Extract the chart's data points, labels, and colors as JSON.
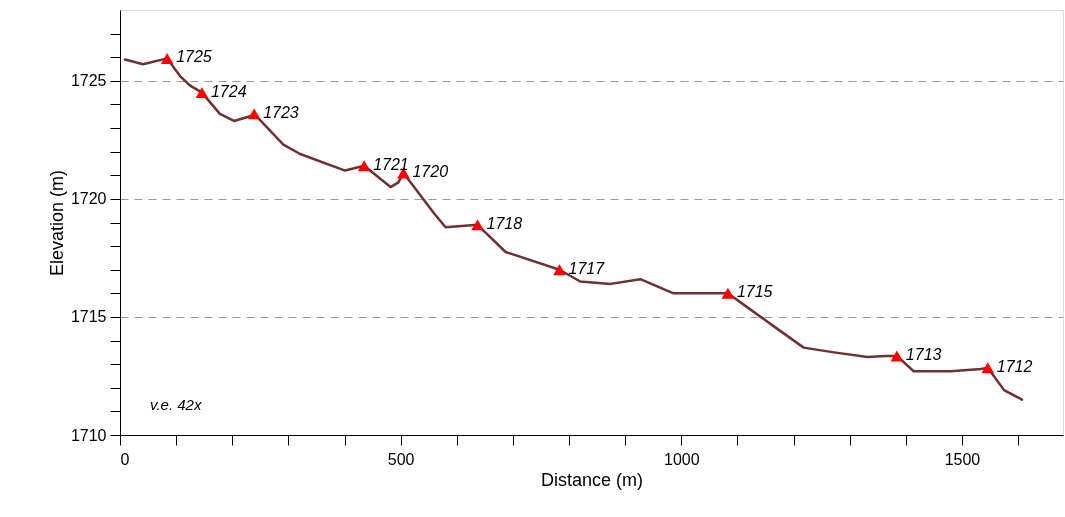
{
  "chart_data": {
    "type": "line",
    "xlabel": "Distance (m)",
    "ylabel": "Elevation (m)",
    "xlim": [
      0,
      1680
    ],
    "ylim": [
      1710,
      1728
    ],
    "xticks": [
      0,
      {
        "value": 100,
        "label": null
      },
      {
        "value": 200,
        "label": null
      },
      {
        "value": 300,
        "label": null
      },
      {
        "value": 400,
        "label": null
      },
      500,
      {
        "value": 600,
        "label": null
      },
      {
        "value": 700,
        "label": null
      },
      {
        "value": 800,
        "label": null
      },
      {
        "value": 900,
        "label": null
      },
      1000,
      {
        "value": 1100,
        "label": null
      },
      {
        "value": 1200,
        "label": null
      },
      {
        "value": 1300,
        "label": null
      },
      {
        "value": 1400,
        "label": null
      },
      1500,
      {
        "value": 1600,
        "label": null
      }
    ],
    "yticks": [
      1710,
      {
        "value": 1711,
        "label": null
      },
      {
        "value": 1712,
        "label": null
      },
      {
        "value": 1713,
        "label": null
      },
      {
        "value": 1714,
        "label": null
      },
      1715,
      {
        "value": 1716,
        "label": null
      },
      {
        "value": 1717,
        "label": null
      },
      {
        "value": 1718,
        "label": null
      },
      {
        "value": 1719,
        "label": null
      },
      1720,
      {
        "value": 1721,
        "label": null
      },
      {
        "value": 1722,
        "label": null
      },
      {
        "value": 1723,
        "label": null
      },
      {
        "value": 1724,
        "label": null
      },
      1725,
      {
        "value": 1726,
        "label": null
      },
      {
        "value": 1727,
        "label": null
      }
    ],
    "grid": "y",
    "line_style": "solid",
    "series": [
      {
        "color": "#722f2f",
        "marker": "none",
        "x": [
          9,
          41,
          84,
          107,
          125,
          146,
          178,
          203,
          232,
          239,
          291,
          321,
          401,
          435,
          482,
          496,
          505,
          556,
          559,
          580,
          637,
          687,
          783,
          820,
          874,
          927,
          986,
          1034,
          1083,
          1124,
          1165,
          1218,
          1272,
          1332,
          1364,
          1384,
          1414,
          1480,
          1534,
          1546,
          1575,
          1607
        ],
        "values": [
          1725.9,
          1725.7,
          1725.95,
          1725.2,
          1724.8,
          1724.5,
          1723.6,
          1723.3,
          1723.5,
          1723.6,
          1722.3,
          1721.9,
          1721.2,
          1721.4,
          1720.5,
          1720.7,
          1721.1,
          1719.5,
          1719.4,
          1718.8,
          1718.9,
          1717.75,
          1717.0,
          1716.5,
          1716.4,
          1716.6,
          1716.0,
          1716.0,
          1716.0,
          1715.3,
          1714.6,
          1713.7,
          1713.5,
          1713.3,
          1713.35,
          1713.35,
          1712.7,
          1712.7,
          1712.8,
          1712.85,
          1711.9,
          1711.5
        ]
      },
      {
        "type": "scatter",
        "color": "#ff0000",
        "marker": "triangle",
        "x": [
          84,
          146,
          239,
          435,
          505,
          637,
          783,
          1083,
          1384,
          1546
        ],
        "values": [
          1725.95,
          1724.5,
          1723.6,
          1721.4,
          1721.1,
          1718.9,
          1717.0,
          1716.0,
          1713.35,
          1712.85
        ]
      }
    ],
    "annotations": [
      {
        "text": "1725",
        "x": 84,
        "y": 1725.95
      },
      {
        "text": "1724",
        "x": 146,
        "y": 1724.5
      },
      {
        "text": "1723",
        "x": 239,
        "y": 1723.6
      },
      {
        "text": "1721",
        "x": 435,
        "y": 1721.4
      },
      {
        "text": "1720",
        "x": 505,
        "y": 1721.1
      },
      {
        "text": "1718",
        "x": 637,
        "y": 1718.9
      },
      {
        "text": "1717",
        "x": 783,
        "y": 1717.0
      },
      {
        "text": "1715",
        "x": 1083,
        "y": 1716.0
      },
      {
        "text": "1713",
        "x": 1384,
        "y": 1713.35
      },
      {
        "text": "1712",
        "x": 1546,
        "y": 1712.85
      },
      "v.e. 42x"
    ]
  }
}
